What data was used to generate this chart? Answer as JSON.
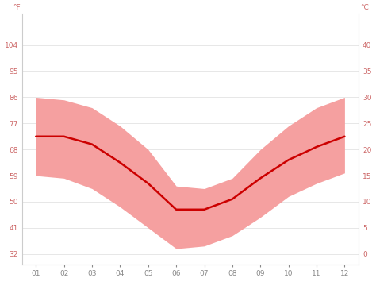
{
  "months": [
    1,
    2,
    3,
    4,
    5,
    6,
    7,
    8,
    9,
    10,
    11,
    12
  ],
  "month_labels": [
    "01",
    "02",
    "03",
    "04",
    "05",
    "06",
    "07",
    "08",
    "09",
    "10",
    "11",
    "12"
  ],
  "avg_temp_c": [
    22.5,
    22.5,
    21.0,
    17.5,
    13.5,
    8.5,
    8.5,
    10.5,
    14.5,
    18.0,
    20.5,
    22.5
  ],
  "max_temp_c": [
    30.0,
    29.5,
    28.0,
    24.5,
    20.0,
    13.0,
    12.5,
    14.5,
    20.0,
    24.5,
    28.0,
    30.0
  ],
  "min_temp_c": [
    15.0,
    14.5,
    12.5,
    9.0,
    5.0,
    1.0,
    1.5,
    3.5,
    7.0,
    11.0,
    13.5,
    15.5
  ],
  "yticks_c": [
    0,
    5,
    10,
    15,
    20,
    25,
    30,
    35,
    40
  ],
  "yticks_f": [
    32,
    41,
    50,
    59,
    68,
    77,
    86,
    95,
    104
  ],
  "ylim_c": [
    -2,
    46
  ],
  "line_color": "#cc0000",
  "band_color": "#f5a0a0",
  "bg_color": "#ffffff",
  "grid_color": "#dddddd",
  "label_color": "#cc6666",
  "tick_label_size": 6.5,
  "axis_label_c": "°C",
  "axis_label_f": "°F"
}
